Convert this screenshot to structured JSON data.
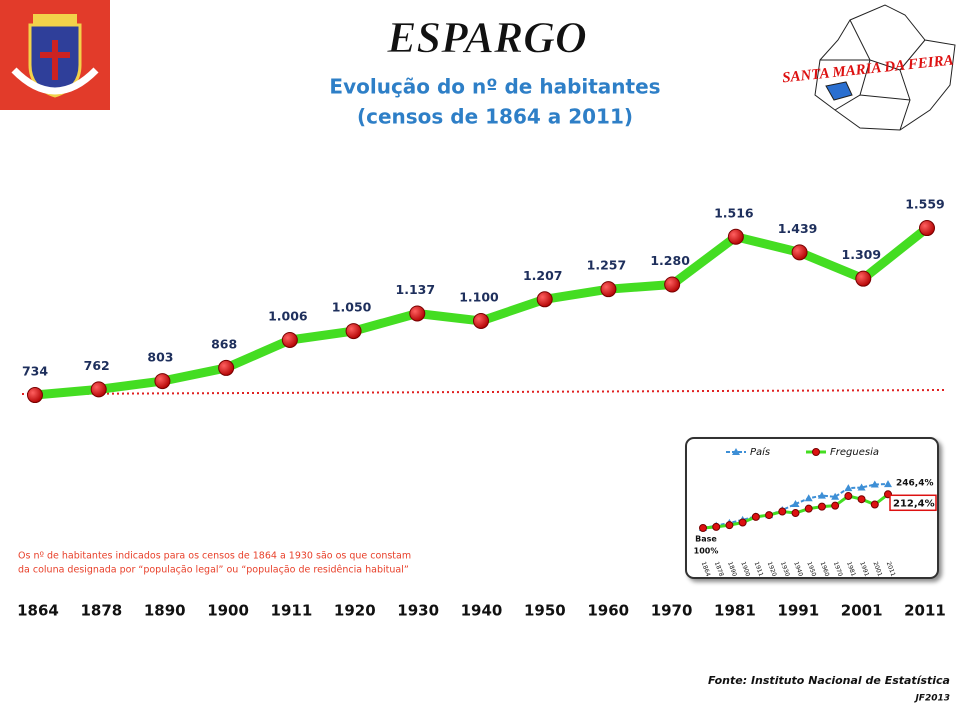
{
  "title": "ESPARGO",
  "subtitle": [
    "Evolução do nº de habitantes",
    "(censos de 1864 a 2011)"
  ],
  "map_label": "SANTA MARIA DA FEIRA",
  "note": [
    "Os nº de habitantes indicados para os censos de 1864 a 1930 são os que constam",
    "da coluna designada por “população legal” ou “população de residência habitual”"
  ],
  "source": "Fonte: Instituto Nacional de Estatística",
  "credit": "JF2013",
  "chart_data": [
    {
      "type": "line",
      "categories": [
        "1864",
        "1878",
        "1890",
        "1900",
        "1911",
        "1920",
        "1930",
        "1940",
        "1950",
        "1960",
        "1970",
        "1981",
        "1991",
        "2001",
        "2011"
      ],
      "values": [
        734,
        762,
        803,
        868,
        1006,
        1050,
        1137,
        1100,
        1207,
        1257,
        1280,
        1516,
        1439,
        1309,
        1559
      ],
      "value_labels": [
        "734",
        "762",
        "803",
        "868",
        "1.006",
        "1.050",
        "1.137",
        "1.100",
        "1.207",
        "1.257",
        "1.280",
        "1.516",
        "1.439",
        "1.309",
        "1.559"
      ],
      "color": "#44dd22",
      "marker_color": "#dd1111"
    },
    {
      "type": "line",
      "categories": [
        "1864",
        "1878",
        "1890",
        "1900",
        "1911",
        "1920",
        "1930",
        "1940",
        "1950",
        "1960",
        "1970",
        "1981",
        "1991",
        "2001",
        "2011"
      ],
      "annotations": [
        "Base",
        "100%"
      ],
      "series": [
        {
          "name": "País",
          "color": "#3d8fd6",
          "values": [
            100,
            108,
            117,
            127,
            139,
            143,
            160,
            180,
            199,
            208,
            204,
            233,
            235,
            245,
            246.4
          ],
          "value_labels": [
            null,
            null,
            null,
            null,
            null,
            null,
            null,
            null,
            null,
            null,
            null,
            null,
            null,
            null,
            "246,4%"
          ]
        },
        {
          "name": "Freguesia",
          "color": "#44dd22",
          "values": [
            100,
            103.8,
            109.4,
            118.3,
            137.1,
            143.1,
            154.9,
            149.9,
            164.4,
            171.3,
            174.4,
            206.5,
            196.0,
            178.3,
            212.4
          ],
          "value_labels": [
            null,
            null,
            null,
            null,
            null,
            null,
            null,
            null,
            null,
            null,
            null,
            null,
            null,
            null,
            "212,4%"
          ]
        }
      ]
    }
  ]
}
